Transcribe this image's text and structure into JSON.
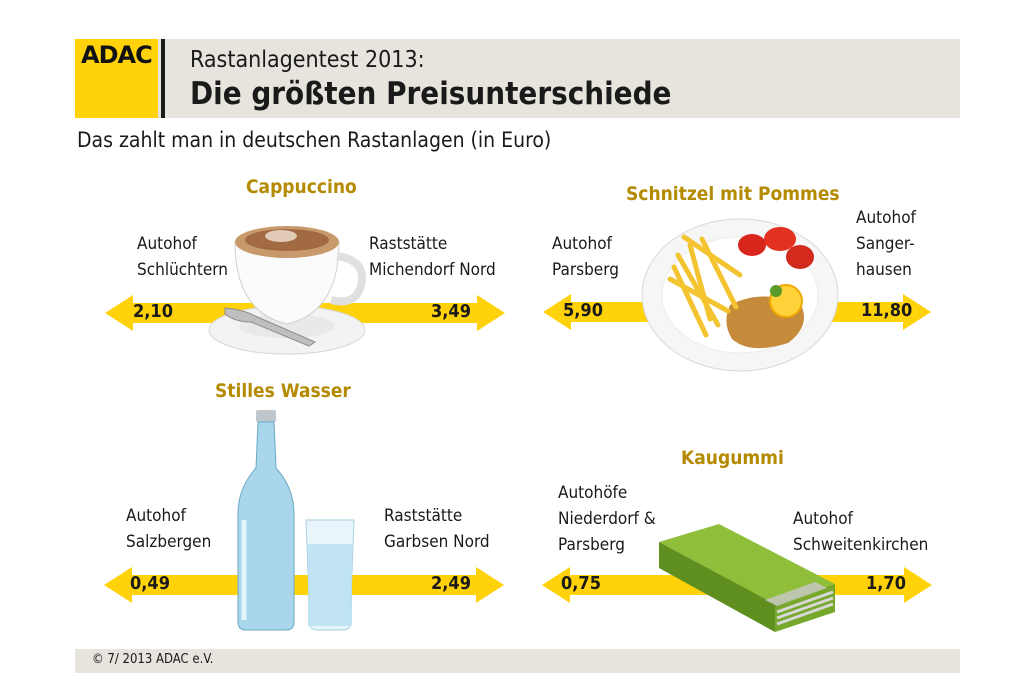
{
  "header": {
    "logo": "ADAC",
    "title_small": "Rastanlagentest 2013:",
    "title_main": "Die größten Preisunterschiede"
  },
  "subtitle": "Das zahlt man in deutschen Rastanlagen (in Euro)",
  "colors": {
    "accent_yellow": "#ffd20a",
    "title_gold": "#b48a00",
    "header_gray": "#e7e4dd"
  },
  "items": {
    "cappuccino": {
      "title": "Cappuccino",
      "low_label": "Autohof\nSchlüchtern",
      "high_label": "Raststätte\nMichendorf Nord",
      "low_value": "2,10",
      "high_value": "3,49",
      "icon": "cappuccino-cup-icon"
    },
    "schnitzel": {
      "title": "Schnitzel mit Pommes",
      "low_label": "Autohof\nParsberg",
      "high_label": "Autohof\nSanger-\nhausen",
      "low_value": "5,90",
      "high_value": "11,80",
      "icon": "schnitzel-plate-icon"
    },
    "wasser": {
      "title": "Stilles Wasser",
      "low_label": "Autohof\nSalzbergen",
      "high_label": "Raststätte\nGarbsen Nord",
      "low_value": "0,49",
      "high_value": "2,49",
      "icon": "water-bottle-icon"
    },
    "kaugummi": {
      "title": "Kaugummi",
      "low_label": "Autohöfe\nNiederdorf &\nParsberg",
      "high_label": "Autohof\nSchweitenkirchen",
      "low_value": "0,75",
      "high_value": "1,70",
      "icon": "chewing-gum-icon"
    }
  },
  "footer": "© 7/ 2013  ADAC e.V."
}
